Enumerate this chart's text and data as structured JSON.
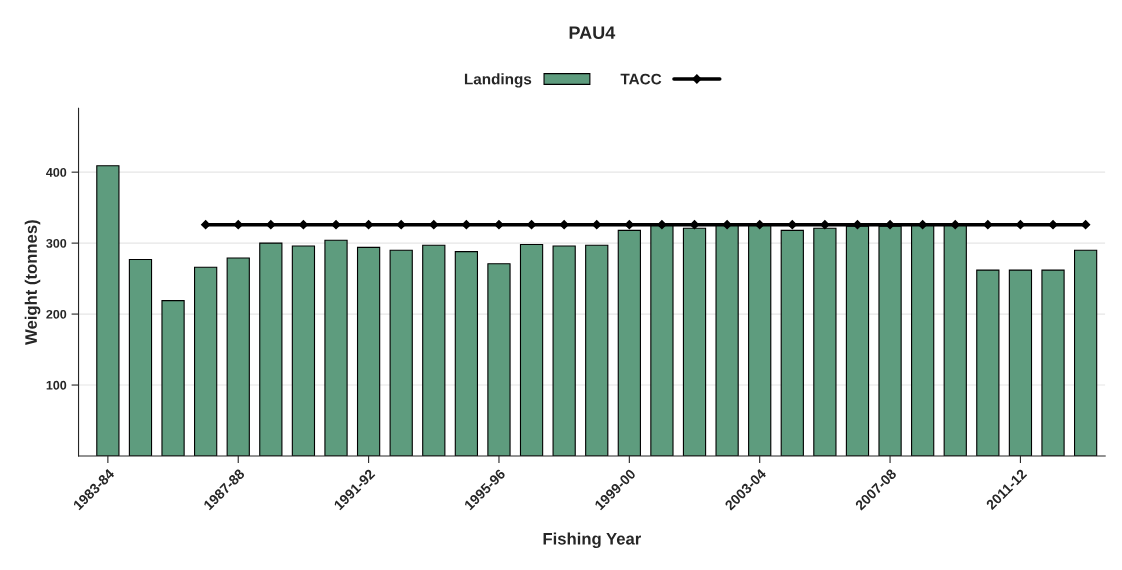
{
  "chart_data": {
    "type": "bar",
    "title": "PAU4",
    "xlabel": "Fishing Year",
    "ylabel": "Weight (tonnes)",
    "categories": [
      "1983-84",
      null,
      null,
      null,
      "1987-88",
      null,
      null,
      null,
      "1991-92",
      null,
      null,
      null,
      "1995-96",
      null,
      null,
      null,
      "1999-00",
      null,
      null,
      null,
      "2003-04",
      null,
      null,
      null,
      "2007-08",
      null,
      null,
      null,
      "2011-12",
      null,
      null
    ],
    "series": [
      {
        "name": "Landings",
        "color": "#5e9c7e",
        "values": [
          409,
          277,
          219,
          266,
          279,
          300,
          296,
          304,
          294,
          290,
          297,
          288,
          271,
          298,
          296,
          297,
          318,
          325,
          321,
          325,
          326,
          318,
          321,
          324,
          324,
          326,
          326,
          262,
          262,
          262,
          290
        ]
      },
      {
        "name": "TACC",
        "type": "line",
        "color": "#000000",
        "marker": "diamond",
        "values": [
          null,
          null,
          null,
          326,
          326,
          326,
          326,
          326,
          326,
          326,
          326,
          326,
          326,
          326,
          326,
          326,
          326,
          326,
          326,
          326,
          326,
          326,
          326,
          326,
          326,
          326,
          326,
          326,
          326,
          326,
          326
        ]
      }
    ],
    "ylim": [
      0,
      490
    ],
    "yticks": [
      100,
      200,
      300,
      400
    ],
    "grid": "y",
    "legend": "top"
  }
}
